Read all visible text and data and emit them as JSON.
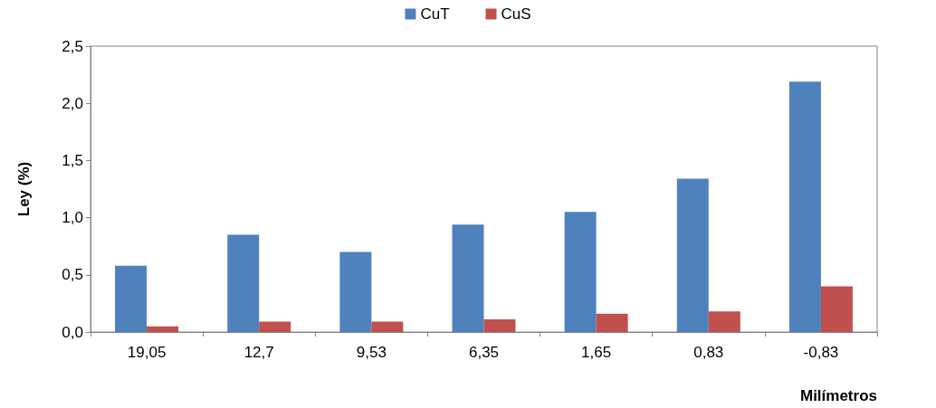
{
  "chart_data": {
    "type": "bar",
    "xlabel": "Milímetros",
    "ylabel": "Ley (%)",
    "categories": [
      "19,05",
      "12,7",
      "9,53",
      "6,35",
      "1,65",
      "0,83",
      "-0,83"
    ],
    "series": [
      {
        "name": "CuT",
        "color": "#4f81bd",
        "values": [
          0.58,
          0.85,
          0.7,
          0.94,
          1.05,
          1.34,
          2.19
        ]
      },
      {
        "name": "CuS",
        "color": "#c0504d",
        "values": [
          0.05,
          0.09,
          0.09,
          0.11,
          0.16,
          0.18,
          0.4
        ]
      }
    ],
    "ylim": [
      0,
      2.5
    ],
    "yticks": [
      {
        "value": 0,
        "label": "0,0"
      },
      {
        "value": 0.5,
        "label": "0,5"
      },
      {
        "value": 1,
        "label": "1,0"
      },
      {
        "value": 1.5,
        "label": "1,5"
      },
      {
        "value": 2,
        "label": "2,0"
      },
      {
        "value": 2.5,
        "label": "2,5"
      }
    ],
    "grid": false,
    "legend": "top"
  }
}
